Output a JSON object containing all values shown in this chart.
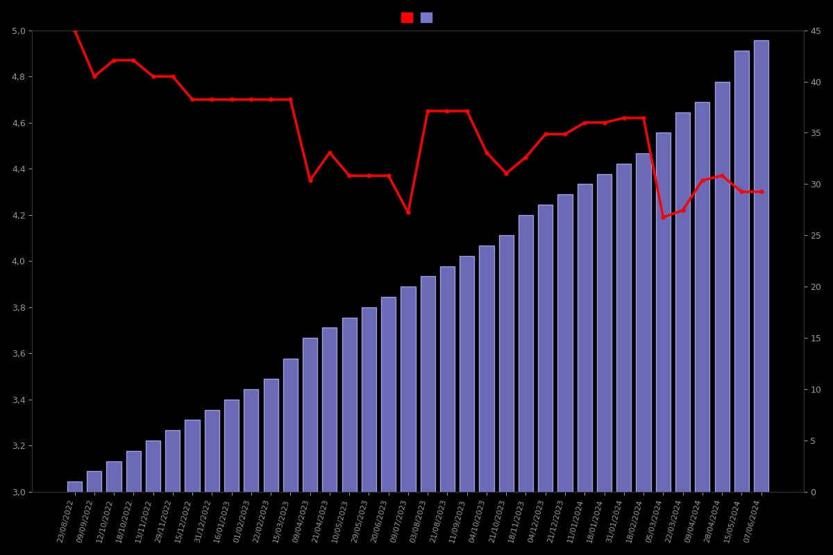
{
  "dates": [
    "23/08/2022",
    "09/09/2022",
    "12/10/2022",
    "18/10/2022",
    "13/11/2022",
    "29/11/2022",
    "15/12/2022",
    "31/12/2022",
    "16/01/2023",
    "01/02/2023",
    "22/02/2023",
    "15/03/2023",
    "09/04/2023",
    "21/04/2023",
    "10/05/2023",
    "29/05/2023",
    "20/06/2023",
    "09/07/2023",
    "03/08/2023",
    "21/08/2023",
    "11/09/2023",
    "04/10/2023",
    "21/10/2023",
    "18/11/2023",
    "04/12/2023",
    "21/12/2023",
    "11/01/2024",
    "18/01/2024",
    "31/01/2024",
    "18/02/2024",
    "05/03/2024",
    "22/03/2024",
    "09/04/2024",
    "28/04/2024",
    "15/05/2024",
    "07/06/2024"
  ],
  "bar_counts": [
    1,
    2,
    3,
    4,
    5,
    6,
    7,
    8,
    9,
    10,
    11,
    13,
    15,
    16,
    17,
    18,
    19,
    20,
    21,
    22,
    23,
    24,
    25,
    27,
    28,
    29,
    30,
    31,
    32,
    33,
    35,
    37,
    38,
    40,
    43,
    44
  ],
  "rating_values": [
    5.0,
    4.8,
    4.87,
    4.87,
    4.8,
    4.8,
    4.7,
    4.7,
    4.7,
    4.7,
    4.7,
    4.7,
    4.35,
    4.47,
    4.37,
    4.37,
    4.37,
    4.21,
    4.65,
    4.65,
    4.65,
    4.47,
    4.38,
    4.45,
    4.55,
    4.55,
    4.6,
    4.6,
    4.62,
    4.62,
    4.19,
    4.22,
    4.35,
    4.37,
    4.3,
    4.3
  ],
  "background_color": "#000000",
  "bar_color": "#7777cc",
  "bar_edgecolor": "#aaaaee",
  "line_color": "#ff0000",
  "marker_color": "#ff0000",
  "left_ylim": [
    3.0,
    5.0
  ],
  "right_ylim": [
    0,
    45
  ],
  "left_yticks": [
    3.0,
    3.2,
    3.4,
    3.6,
    3.8,
    4.0,
    4.2,
    4.4,
    4.6,
    4.8,
    5.0
  ],
  "right_yticks": [
    0,
    5,
    10,
    15,
    20,
    25,
    30,
    35,
    40,
    45
  ],
  "tick_color": "#999999",
  "text_color": "#cccccc",
  "line_width": 2.5
}
